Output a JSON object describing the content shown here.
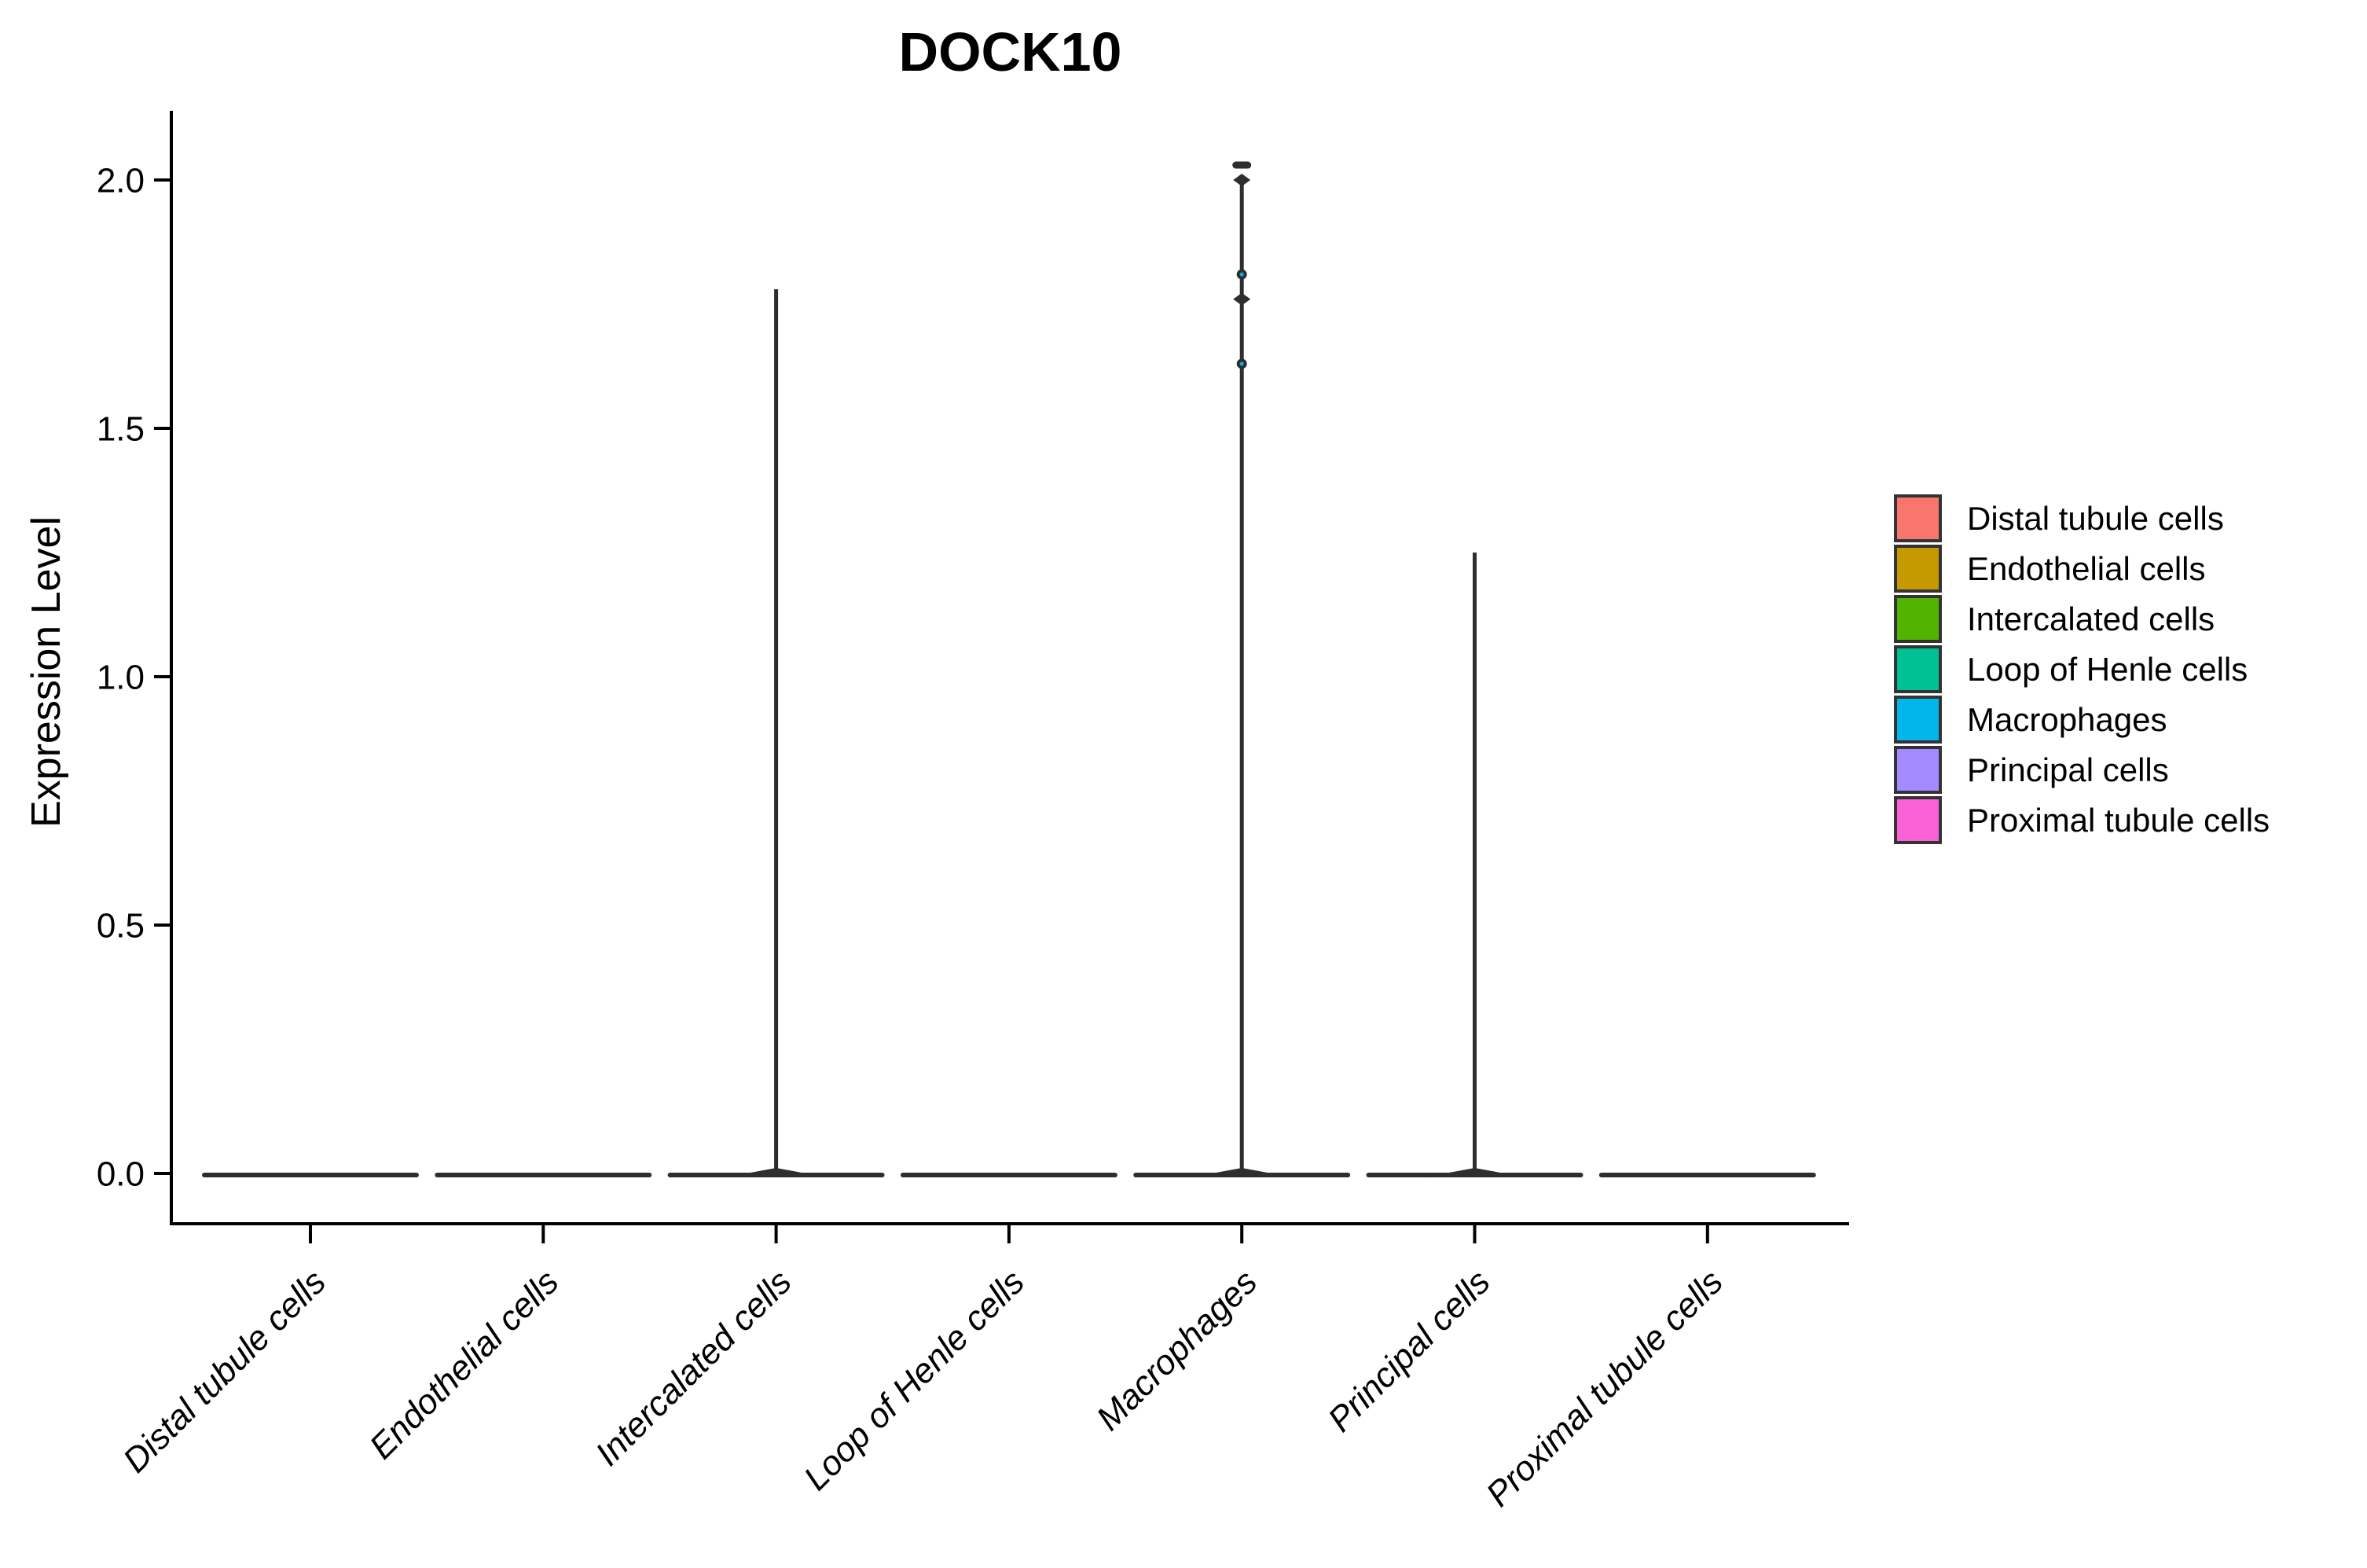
{
  "chart_data": {
    "type": "violin",
    "title": "DOCK10",
    "xlabel": "",
    "ylabel": "Expression Level",
    "ylim": [
      -0.1,
      2.13
    ],
    "yticks": [
      0.0,
      0.5,
      1.0,
      1.5,
      2.0
    ],
    "ytick_labels": [
      "0.0",
      "0.5",
      "1.0",
      "1.5",
      "2.0"
    ],
    "grid": false,
    "legend_position": "right",
    "categories": [
      "Distal tubule cells",
      "Endothelial cells",
      "Intercalated cells",
      "Loop of Henle cells",
      "Macrophages",
      "Principal cells",
      "Proximal tubule cells"
    ],
    "violins": [
      {
        "label": "Distal tubule cells",
        "color": "#F8766D",
        "body_max": 0.0,
        "spike_top": null,
        "outliers": []
      },
      {
        "label": "Endothelial cells",
        "color": "#C49A00",
        "body_max": 0.0,
        "spike_top": null,
        "outliers": []
      },
      {
        "label": "Intercalated cells",
        "color": "#53B400",
        "body_max": 0.0,
        "spike_top": 1.78,
        "outliers": []
      },
      {
        "label": "Loop of Henle cells",
        "color": "#00C094",
        "body_max": 0.0,
        "spike_top": null,
        "outliers": []
      },
      {
        "label": "Macrophages",
        "color": "#00B6EB",
        "body_max": 0.0,
        "spike_top": 2.0,
        "outliers": [
          {
            "value": 2.03,
            "shape": "bar"
          },
          {
            "value": 2.0,
            "shape": "diamond"
          },
          {
            "value": 1.81,
            "shape": "dot"
          },
          {
            "value": 1.76,
            "shape": "diamond"
          },
          {
            "value": 1.63,
            "shape": "dot"
          }
        ]
      },
      {
        "label": "Principal cells",
        "color": "#A58AFF",
        "body_max": 0.0,
        "spike_top": 1.25,
        "outliers": []
      },
      {
        "label": "Proximal tubule cells",
        "color": "#FB61D7",
        "body_max": 0.0,
        "spike_top": null,
        "outliers": []
      }
    ],
    "legend_entries": [
      {
        "label": "Distal tubule cells",
        "color": "#F8766D"
      },
      {
        "label": "Endothelial cells",
        "color": "#C49A00"
      },
      {
        "label": "Intercalated cells",
        "color": "#53B400"
      },
      {
        "label": "Loop of Henle cells",
        "color": "#00C094"
      },
      {
        "label": "Macrophages",
        "color": "#00B6EB"
      },
      {
        "label": "Principal cells",
        "color": "#A58AFF"
      },
      {
        "label": "Proximal tubule cells",
        "color": "#FB61D7"
      }
    ],
    "style": {
      "violin_outline_color": "#2E2E2E",
      "axis_color": "#000000"
    }
  }
}
